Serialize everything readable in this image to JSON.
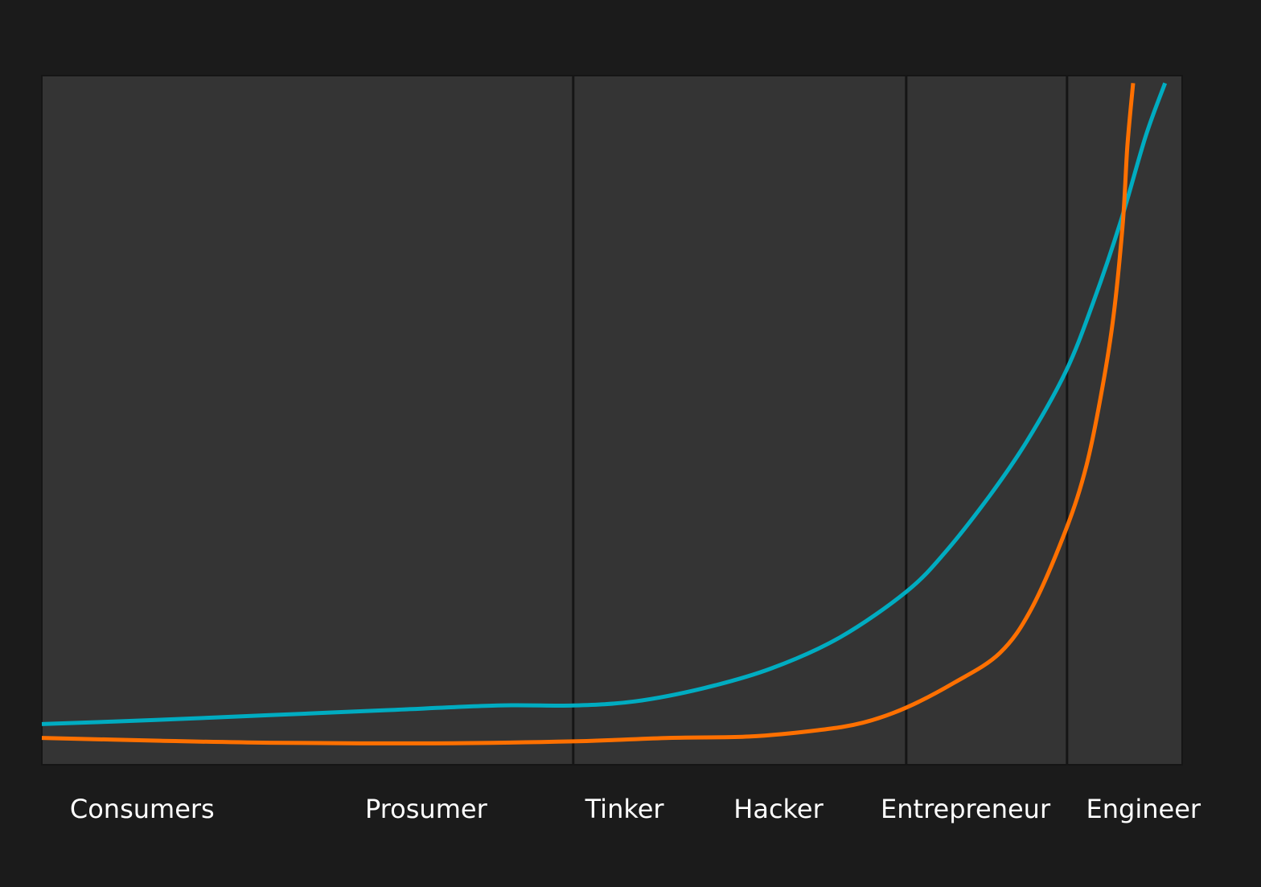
{
  "chart_data": {
    "type": "line",
    "title": "",
    "xlabel": "",
    "ylabel": "",
    "xlim": [
      0,
      100
    ],
    "ylim": [
      0,
      100
    ],
    "grid": false,
    "legend": "none",
    "colors": {
      "page_background": "#1b1b1b",
      "plot_background": "#343434",
      "dividers": "#151515",
      "labels": "#ffffff"
    },
    "segment_boundaries": [
      46.6,
      75.8,
      89.9
    ],
    "tick_labels": [
      {
        "text": "Consumers",
        "x": 8.8
      },
      {
        "text": "Prosumer",
        "x": 33.7
      },
      {
        "text": "Tinker",
        "x": 51.1
      },
      {
        "text": "Hacker",
        "x": 64.6
      },
      {
        "text": "Entrepreneur",
        "x": 81.0
      },
      {
        "text": "Engineer",
        "x": 96.6
      }
    ],
    "series": [
      {
        "color": "#00acc1",
        "points": [
          [
            0,
            5.9
          ],
          [
            10,
            6.5
          ],
          [
            20,
            7.2
          ],
          [
            30,
            7.9
          ],
          [
            40,
            8.6
          ],
          [
            46.6,
            8.6
          ],
          [
            52,
            9.2
          ],
          [
            58,
            11.1
          ],
          [
            64,
            14.0
          ],
          [
            70,
            18.5
          ],
          [
            75.8,
            25.1
          ],
          [
            79.2,
            30.8
          ],
          [
            83.1,
            39.0
          ],
          [
            86.4,
            47.0
          ],
          [
            89.8,
            57.1
          ],
          [
            92.2,
            67.1
          ],
          [
            94.6,
            78.8
          ],
          [
            96.8,
            91.2
          ],
          [
            98.5,
            98.9
          ]
        ]
      },
      {
        "color": "#ff7000",
        "points": [
          [
            0,
            3.9
          ],
          [
            10,
            3.5
          ],
          [
            20,
            3.2
          ],
          [
            34.4,
            3.1
          ],
          [
            46.6,
            3.4
          ],
          [
            55,
            3.9
          ],
          [
            62,
            4.1
          ],
          [
            68,
            5.0
          ],
          [
            72,
            6.1
          ],
          [
            75.8,
            8.3
          ],
          [
            80,
            11.9
          ],
          [
            84,
            16.2
          ],
          [
            86.8,
            22.7
          ],
          [
            89.8,
            34.1
          ],
          [
            91.6,
            43.4
          ],
          [
            93.0,
            54.7
          ],
          [
            94.0,
            65.4
          ],
          [
            94.8,
            78.8
          ],
          [
            95.2,
            89.9
          ],
          [
            95.7,
            98.9
          ]
        ]
      }
    ]
  }
}
